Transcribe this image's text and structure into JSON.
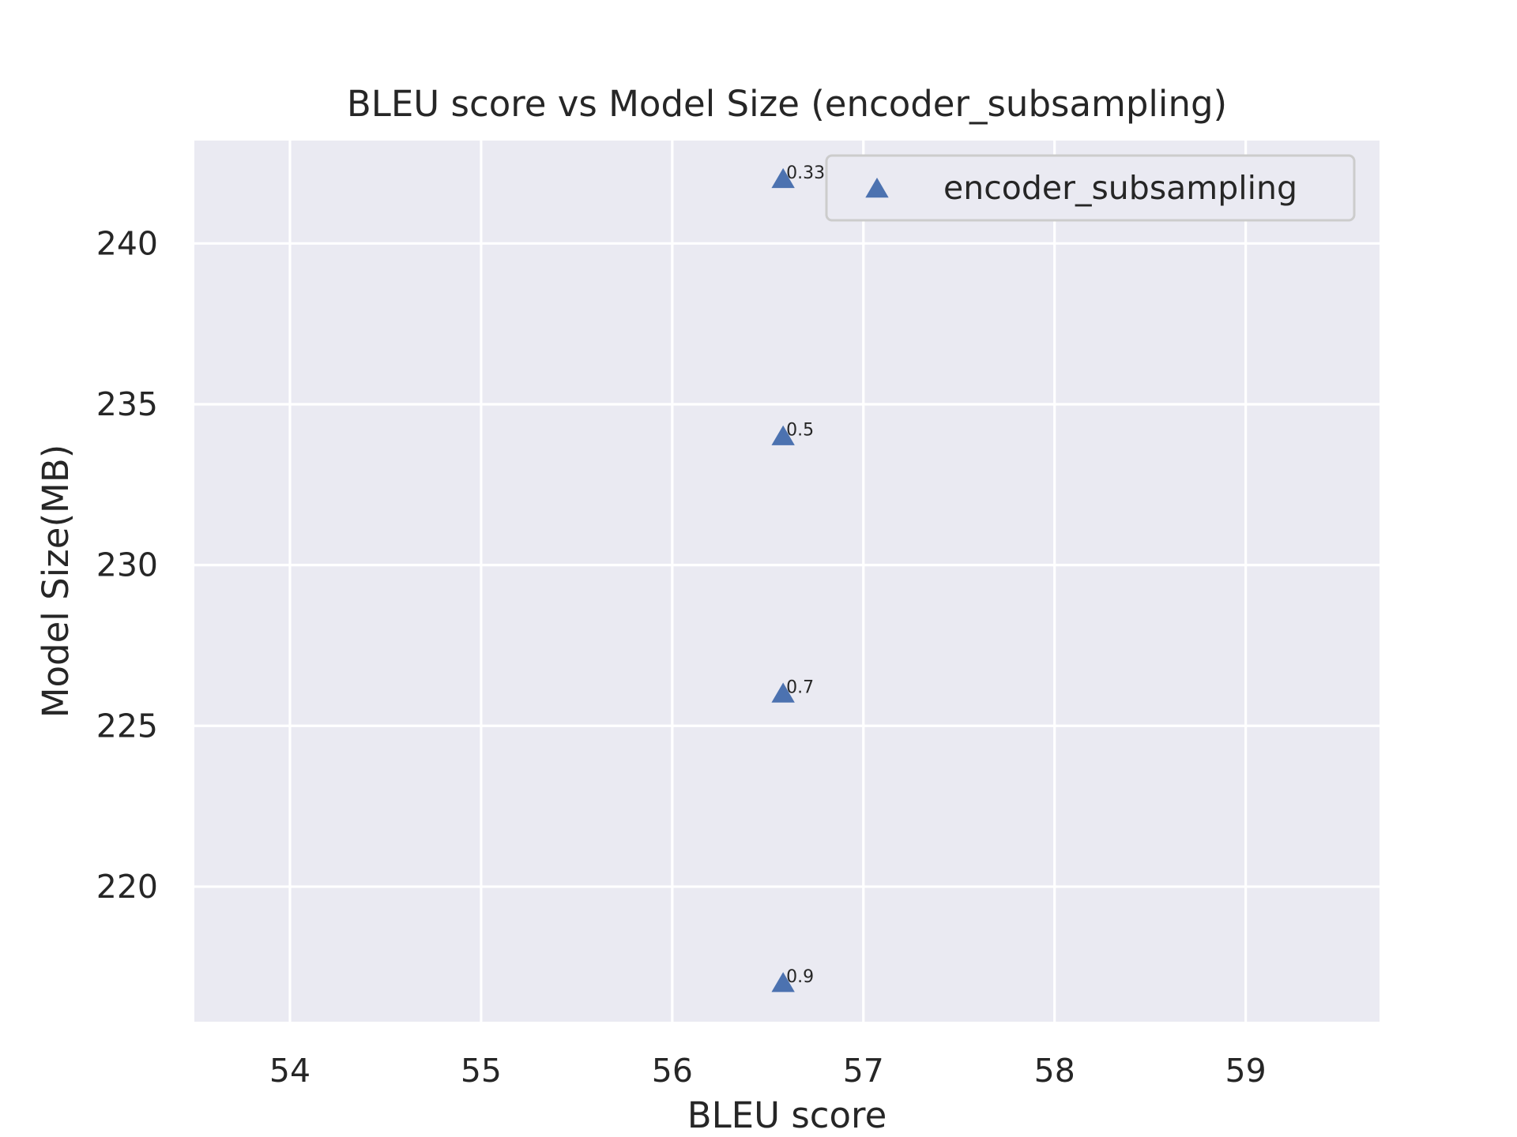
{
  "chart_data": {
    "type": "scatter",
    "title": "BLEU score vs Model Size (encoder_subsampling)",
    "xlabel": "BLEU score",
    "ylabel": "Model Size(MB)",
    "xlim": [
      53.5,
      59.7
    ],
    "ylim": [
      215.8,
      243.2
    ],
    "xticks": [
      54,
      55,
      56,
      57,
      58,
      59
    ],
    "yticks": [
      220,
      225,
      230,
      235,
      240
    ],
    "grid": true,
    "legend_placement": "top-right",
    "series": [
      {
        "name": "encoder_subsampling",
        "marker": "triangle-up",
        "color": "#4c72b0",
        "points": [
          {
            "x": 56.58,
            "y": 242.0,
            "label": "0.33"
          },
          {
            "x": 56.58,
            "y": 234.0,
            "label": "0.5"
          },
          {
            "x": 56.58,
            "y": 226.0,
            "label": "0.7"
          },
          {
            "x": 56.58,
            "y": 217.0,
            "label": "0.9"
          }
        ]
      }
    ]
  },
  "colors": {
    "plot_background": "#eaeaf2",
    "grid": "#ffffff",
    "marker": "#4c72b0",
    "text": "#262626"
  }
}
